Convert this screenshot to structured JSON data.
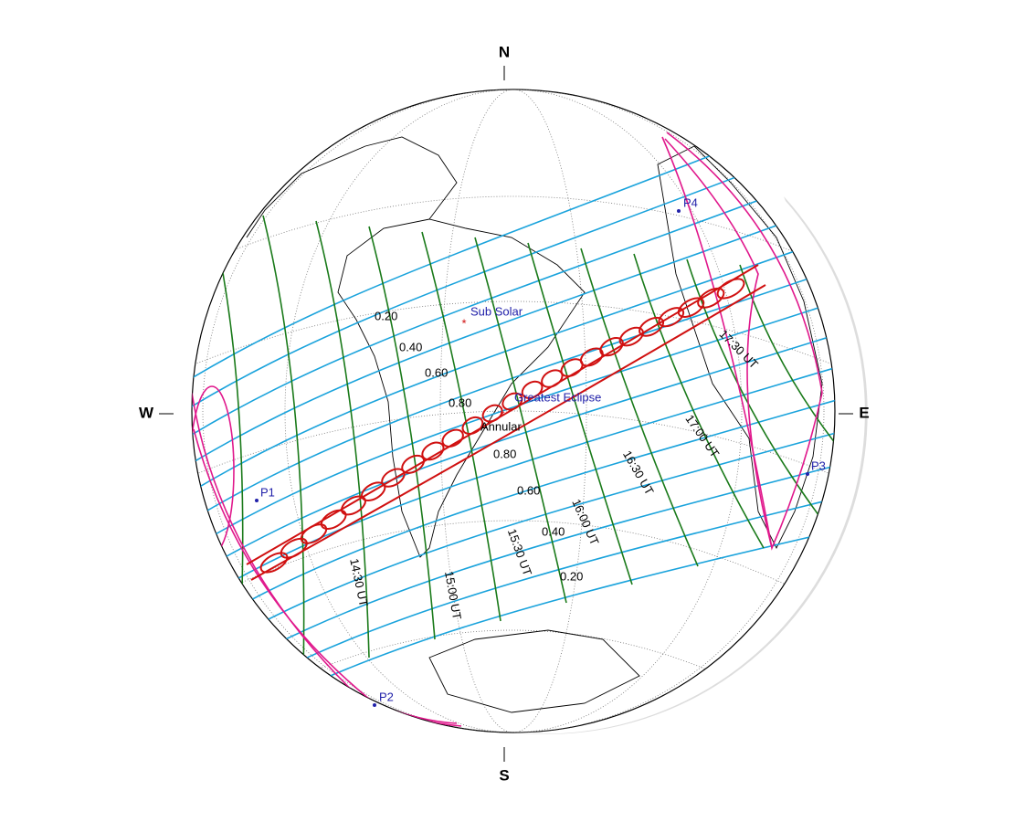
{
  "compass": {
    "north": "N",
    "south": "S",
    "east": "E",
    "west": "W"
  },
  "points": {
    "sub_solar": "Sub Solar",
    "greatest_eclipse": "Greatest Eclipse",
    "annular": "Annular",
    "p1": "P1",
    "p2": "P2",
    "p3": "P3",
    "p4": "P4"
  },
  "magnitude_labels": {
    "north": [
      "0.20",
      "0.40",
      "0.60",
      "0.80"
    ],
    "south": [
      "0.80",
      "0.60",
      "0.40",
      "0.20"
    ]
  },
  "time_labels": [
    "14:30 UT",
    "15:00 UT",
    "15:30 UT",
    "16:00 UT",
    "16:30 UT",
    "17:00 UT",
    "17:30 UT"
  ]
}
